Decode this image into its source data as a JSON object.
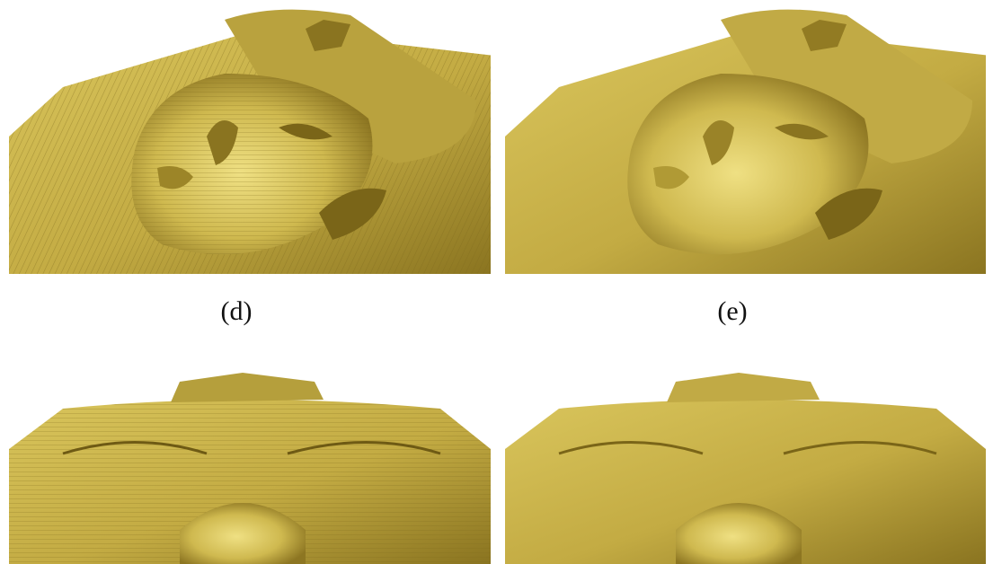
{
  "figure": {
    "captions": {
      "left": "(d)",
      "right": "(e)"
    },
    "colors": {
      "gold_base": "#c8b14a",
      "gold_light": "#e6d66e",
      "gold_shadow": "#6e5a14",
      "background": "#ffffff"
    },
    "panels": [
      {
        "id": "d",
        "view": "oblique",
        "surface": "stepped"
      },
      {
        "id": "e",
        "view": "oblique",
        "surface": "smooth"
      },
      {
        "id": "f",
        "view": "frontal-low",
        "surface": "stepped"
      },
      {
        "id": "g",
        "view": "frontal-low",
        "surface": "smooth"
      }
    ]
  }
}
